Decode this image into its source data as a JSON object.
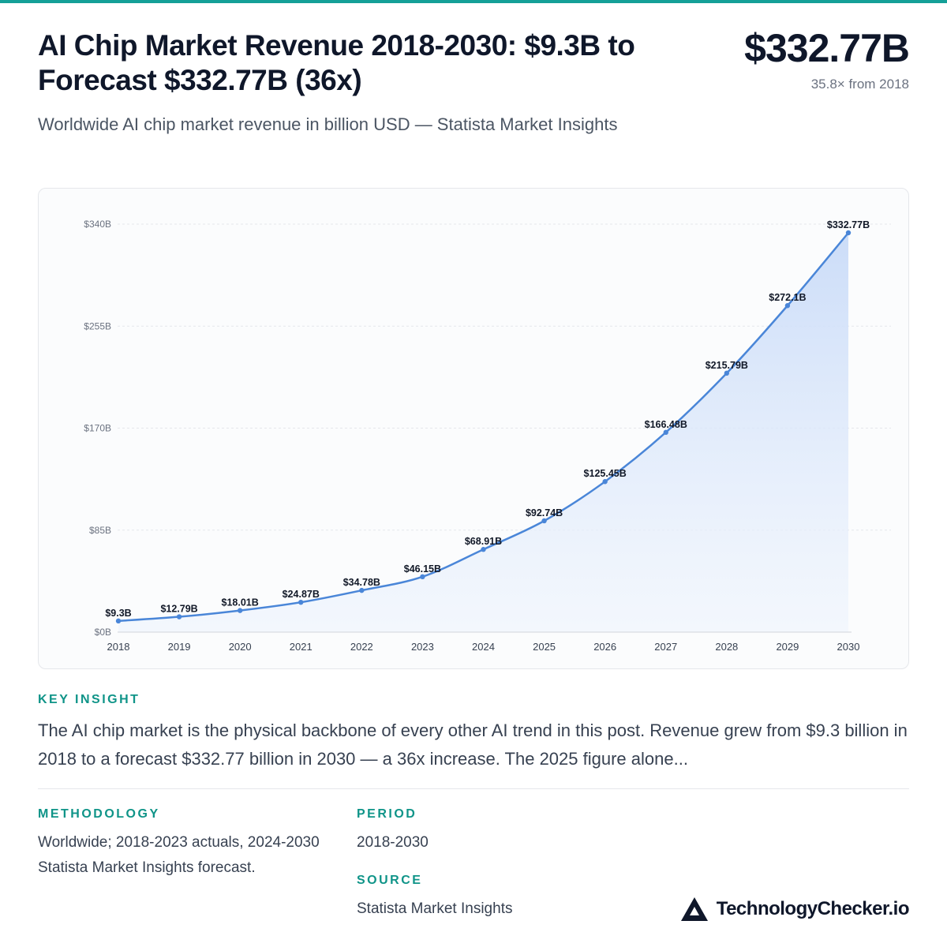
{
  "title": "AI Chip Market Revenue 2018-2030: $9.3B to Forecast $332.77B (36x)",
  "subtitle": "Worldwide AI chip market revenue in billion USD — Statista Market Insights",
  "kpi": {
    "value": "$332.77B",
    "note": "35.8× from 2018"
  },
  "chart_data": {
    "type": "area",
    "x": [
      "2018",
      "2019",
      "2020",
      "2021",
      "2022",
      "2023",
      "2024",
      "2025",
      "2026",
      "2027",
      "2028",
      "2029",
      "2030"
    ],
    "values": [
      9.3,
      12.79,
      18.01,
      24.87,
      34.78,
      46.15,
      68.91,
      92.74,
      125.45,
      166.48,
      215.79,
      272.1,
      332.77
    ],
    "data_labels": [
      "$9.3B",
      "$12.79B",
      "$18.01B",
      "$24.87B",
      "$34.78B",
      "$46.15B",
      "$68.91B",
      "$92.74B",
      "$125.45B",
      "$166.48B",
      "$215.79B",
      "$272.1B",
      "$332.77B"
    ],
    "y_ticks": [
      0,
      85,
      170,
      255,
      340
    ],
    "y_tick_labels": [
      "$0B",
      "$85B",
      "$170B",
      "$255B",
      "$340B"
    ],
    "ylim": [
      0,
      340
    ],
    "grid": true,
    "line_color": "#4a86d8",
    "fill_color": "#dbe7fb"
  },
  "key_insight": {
    "label": "KEY INSIGHT",
    "text": "The AI chip market is the physical backbone of every other AI trend in this post. Revenue grew from $9.3 billion in 2018 to a forecast $332.77 billion in 2030 — a 36x increase. The 2025 figure alone..."
  },
  "methodology": {
    "label": "METHODOLOGY",
    "text": "Worldwide; 2018-2023 actuals, 2024-2030 Statista Market Insights forecast."
  },
  "period": {
    "label": "PERIOD",
    "text": "2018-2030"
  },
  "source": {
    "label": "SOURCE",
    "text": "Statista Market Insights"
  },
  "brand": {
    "name": "TechnologyChecker.io",
    "icon": "triangle-logo-icon"
  }
}
